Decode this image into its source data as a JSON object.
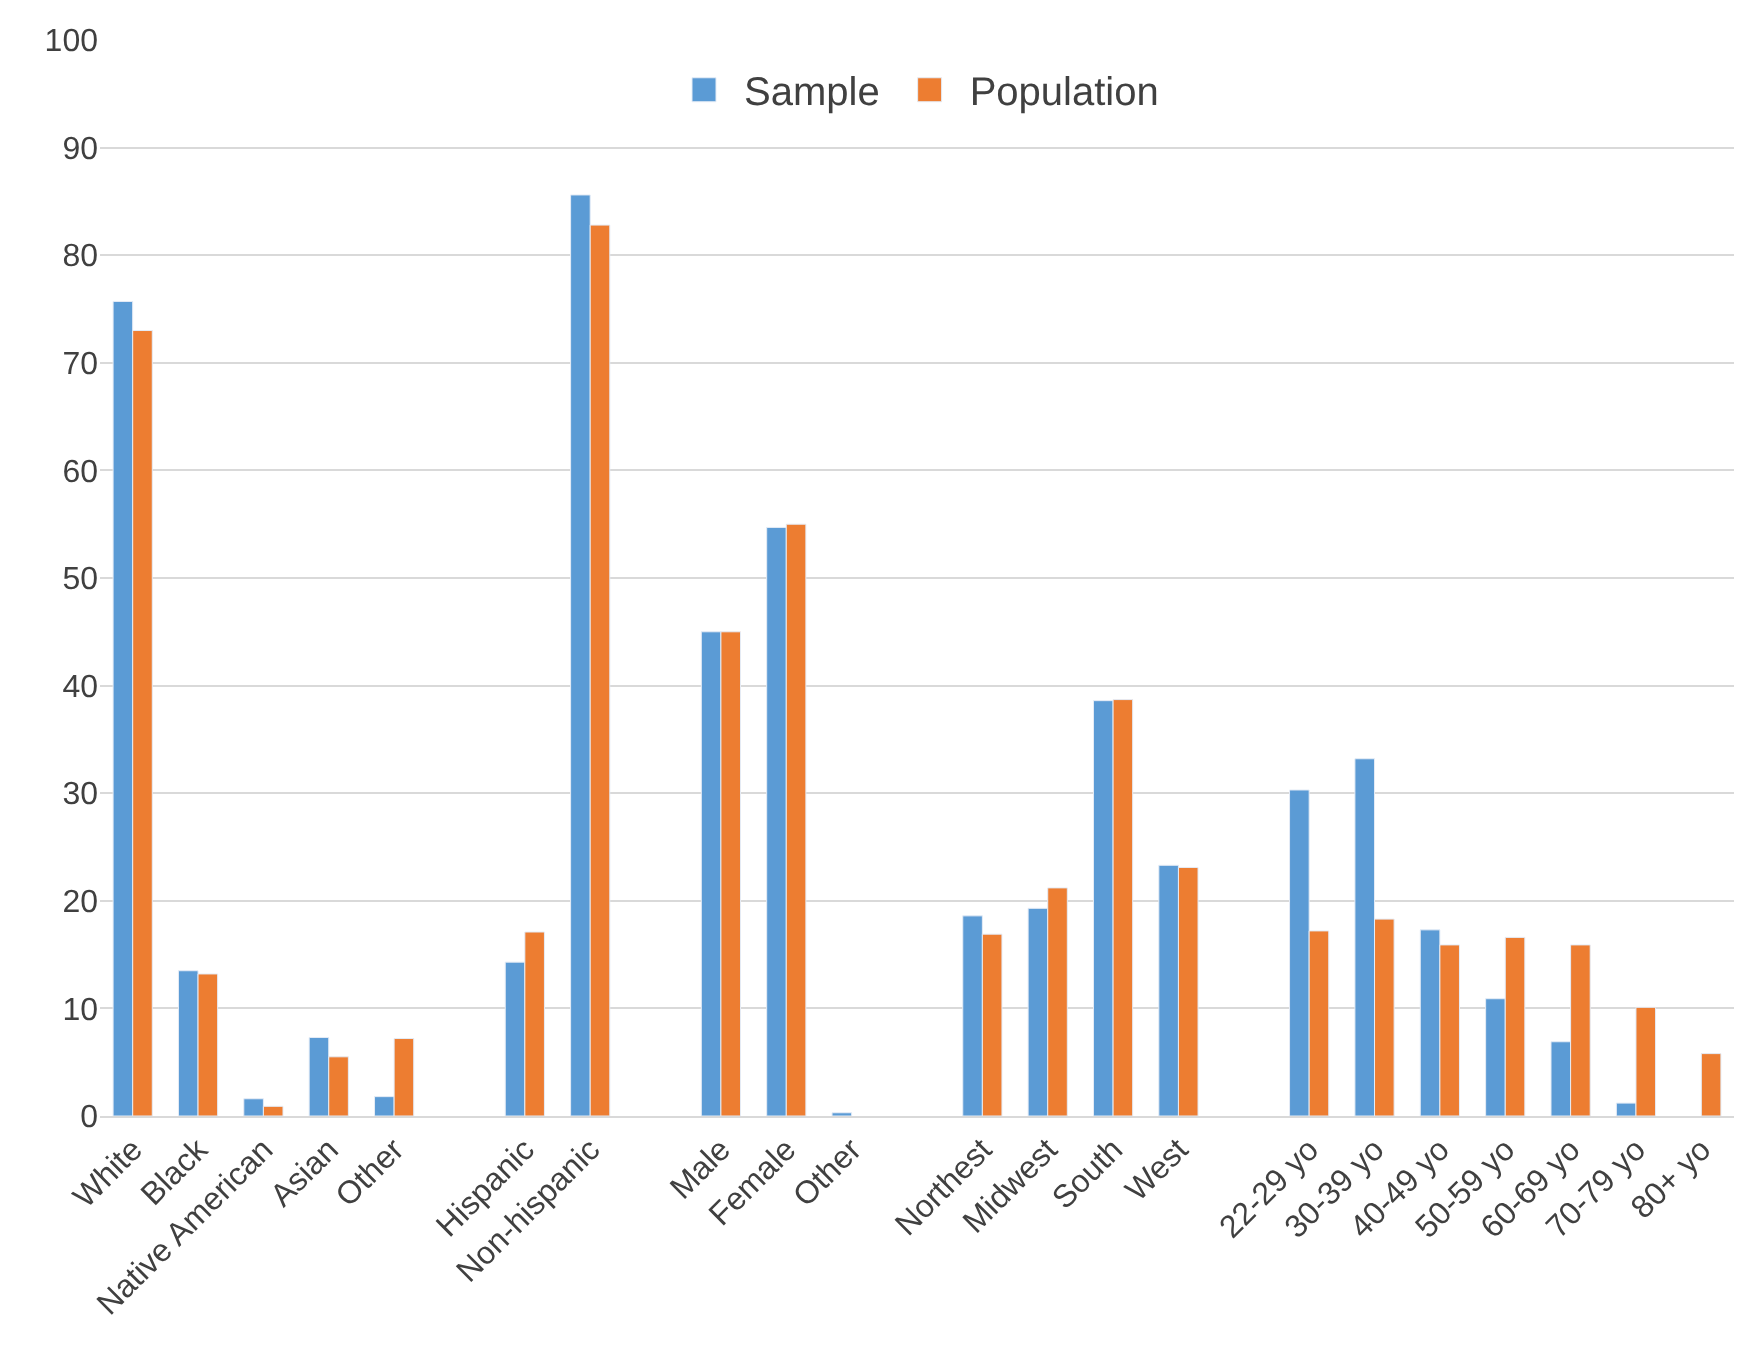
{
  "chart_data": {
    "type": "bar",
    "categories": [
      "White",
      "Black",
      "Native American",
      "Asian",
      "Other",
      null,
      "Hispanic",
      "Non-hispanic",
      null,
      "Male",
      "Female",
      "Other",
      null,
      "Northest",
      "Midwest",
      "South",
      "West",
      null,
      "22-29 yo",
      "30-39 yo",
      "40-49 yo",
      "50-59 yo",
      "60-69 yo",
      "70-79 yo",
      "80+ yo"
    ],
    "series": [
      {
        "name": "Sample",
        "color": "#5b9bd5",
        "values": [
          75.7,
          13.5,
          1.6,
          7.3,
          1.8,
          null,
          14.3,
          85.6,
          null,
          45.0,
          54.7,
          0.3,
          null,
          18.6,
          19.3,
          38.6,
          23.3,
          null,
          30.3,
          33.2,
          17.3,
          10.9,
          6.9,
          1.2,
          null
        ]
      },
      {
        "name": "Population",
        "color": "#ed7d31",
        "values": [
          73.0,
          13.2,
          0.9,
          5.5,
          7.2,
          null,
          17.1,
          82.8,
          null,
          45.0,
          55.0,
          null,
          null,
          16.9,
          21.2,
          38.7,
          23.1,
          null,
          17.2,
          18.3,
          15.9,
          16.6,
          15.9,
          10.1,
          5.8
        ]
      }
    ],
    "ylim": [
      0,
      100
    ],
    "yticks": [
      0,
      10,
      20,
      30,
      40,
      50,
      60,
      70,
      80,
      90,
      100
    ],
    "grid": "y",
    "legend": "top"
  }
}
